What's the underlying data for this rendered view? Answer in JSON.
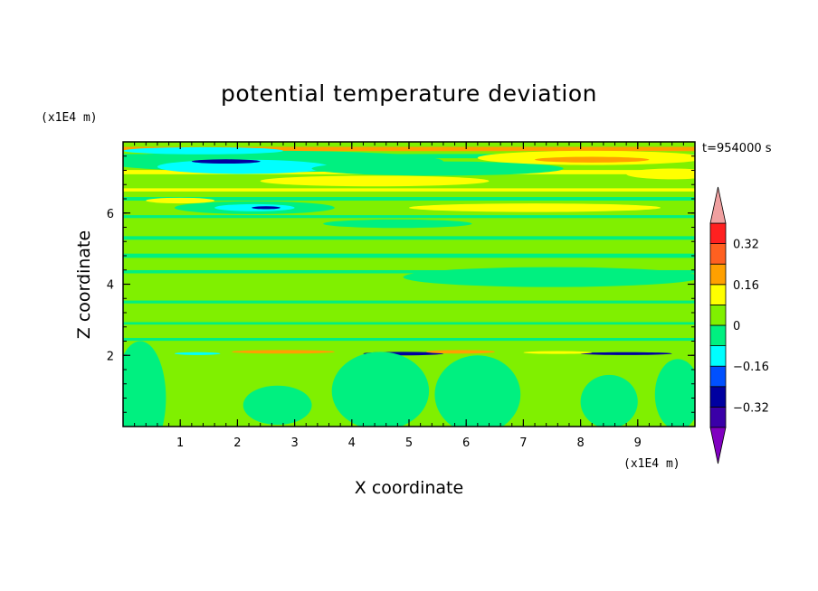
{
  "chart_data": {
    "type": "heatmap",
    "title": "potential temperature deviation",
    "xlabel": "X coordinate",
    "ylabel": "Z coordinate",
    "x_unit": "(x1E4 m)",
    "y_unit": "(x1E4 m)",
    "time_label": "t=954000 s",
    "xlim": [
      0,
      10
    ],
    "ylim": [
      0,
      8
    ],
    "x_ticks": [
      1,
      2,
      3,
      4,
      5,
      6,
      7,
      8,
      9
    ],
    "y_ticks": [
      2,
      4,
      6
    ],
    "x_tick_labels": [
      "1",
      "2",
      "3",
      "4",
      "5",
      "6",
      "7",
      "8",
      "9"
    ],
    "y_tick_labels": [
      "2",
      "4",
      "6"
    ],
    "colorbar": {
      "levels": [
        -0.4,
        -0.32,
        -0.24,
        -0.16,
        -0.08,
        0,
        0.08,
        0.16,
        0.24,
        0.32,
        0.4
      ],
      "tick_values": [
        0.32,
        0.16,
        0,
        -0.16,
        -0.32
      ],
      "tick_labels": [
        "0.32",
        "0.16",
        "0",
        "−0.16",
        "−0.32"
      ],
      "colors": [
        "#8000c0",
        "#3a00a8",
        "#0000a0",
        "#0050ff",
        "#00ffff",
        "#00f080",
        "#80f000",
        "#ffff00",
        "#ffa000",
        "#ff6020",
        "#ff2020",
        "#f0a0a0"
      ],
      "extend": "both"
    },
    "background_color": "#80f000",
    "features": [
      {
        "type": "hband",
        "z": 7.8,
        "dz": 0.12,
        "cls": 0.2
      },
      {
        "type": "hband",
        "z": 7.6,
        "dz": 0.12,
        "cls": -0.05
      },
      {
        "type": "hband",
        "z": 7.15,
        "dz": 0.12,
        "cls": 0.12
      },
      {
        "type": "hband",
        "z": 6.65,
        "dz": 0.09,
        "cls": 0.12
      },
      {
        "type": "hband",
        "z": 6.4,
        "dz": 0.1,
        "cls": -0.05
      },
      {
        "type": "hband",
        "z": 5.9,
        "dz": 0.08,
        "cls": -0.05
      },
      {
        "type": "hband",
        "z": 5.3,
        "dz": 0.1,
        "cls": -0.05
      },
      {
        "type": "hband",
        "z": 4.8,
        "dz": 0.12,
        "cls": -0.05
      },
      {
        "type": "hband",
        "z": 4.35,
        "dz": 0.09,
        "cls": -0.05
      },
      {
        "type": "hband",
        "z": 3.5,
        "dz": 0.08,
        "cls": -0.05
      },
      {
        "type": "hband",
        "z": 2.9,
        "dz": 0.07,
        "cls": -0.05
      },
      {
        "type": "hband",
        "z": 2.45,
        "dz": 0.08,
        "cls": -0.05
      },
      {
        "type": "blob",
        "x": 2.6,
        "z": 7.45,
        "rx": 3.0,
        "rz": 0.3,
        "cls": -0.05
      },
      {
        "type": "blob",
        "x": 2.1,
        "z": 7.3,
        "rx": 1.5,
        "rz": 0.2,
        "cls": -0.14
      },
      {
        "type": "blob",
        "x": 1.4,
        "z": 7.75,
        "rx": 1.4,
        "rz": 0.1,
        "cls": -0.14
      },
      {
        "type": "blob",
        "x": 1.8,
        "z": 7.45,
        "rx": 0.6,
        "rz": 0.06,
        "cls": -0.26
      },
      {
        "type": "blob",
        "x": 5.5,
        "z": 7.25,
        "rx": 2.2,
        "rz": 0.2,
        "cls": -0.05
      },
      {
        "type": "blob",
        "x": 4.4,
        "z": 6.9,
        "rx": 2.0,
        "rz": 0.15,
        "cls": 0.12
      },
      {
        "type": "blob",
        "x": 8.2,
        "z": 7.55,
        "rx": 2.0,
        "rz": 0.2,
        "cls": 0.12
      },
      {
        "type": "blob",
        "x": 8.2,
        "z": 7.5,
        "rx": 1.0,
        "rz": 0.08,
        "cls": 0.2
      },
      {
        "type": "blob",
        "x": 9.6,
        "z": 7.1,
        "rx": 0.8,
        "rz": 0.15,
        "cls": 0.12
      },
      {
        "type": "blob",
        "x": 2.3,
        "z": 6.15,
        "rx": 1.4,
        "rz": 0.18,
        "cls": -0.05
      },
      {
        "type": "blob",
        "x": 2.3,
        "z": 6.15,
        "rx": 0.7,
        "rz": 0.1,
        "cls": -0.14
      },
      {
        "type": "blob",
        "x": 2.5,
        "z": 6.15,
        "rx": 0.25,
        "rz": 0.04,
        "cls": -0.26
      },
      {
        "type": "blob",
        "x": 7.2,
        "z": 6.15,
        "rx": 2.2,
        "rz": 0.12,
        "cls": 0.12
      },
      {
        "type": "blob",
        "x": 1.0,
        "z": 6.35,
        "rx": 0.6,
        "rz": 0.08,
        "cls": 0.12
      },
      {
        "type": "blob",
        "x": 7.5,
        "z": 4.2,
        "rx": 2.6,
        "rz": 0.28,
        "cls": -0.05
      },
      {
        "type": "blob",
        "x": 4.8,
        "z": 5.7,
        "rx": 1.3,
        "rz": 0.12,
        "cls": -0.05
      },
      {
        "type": "blob",
        "x": 2.8,
        "z": 2.1,
        "rx": 0.9,
        "rz": 0.05,
        "cls": 0.2
      },
      {
        "type": "blob",
        "x": 4.9,
        "z": 2.05,
        "rx": 0.7,
        "rz": 0.05,
        "cls": -0.26
      },
      {
        "type": "blob",
        "x": 5.9,
        "z": 2.1,
        "rx": 0.6,
        "rz": 0.05,
        "cls": 0.2
      },
      {
        "type": "blob",
        "x": 8.8,
        "z": 2.05,
        "rx": 0.8,
        "rz": 0.04,
        "cls": -0.26
      },
      {
        "type": "blob",
        "x": 1.3,
        "z": 2.05,
        "rx": 0.4,
        "rz": 0.04,
        "cls": -0.14
      },
      {
        "type": "blob",
        "x": 7.6,
        "z": 2.08,
        "rx": 0.6,
        "rz": 0.04,
        "cls": 0.12
      },
      {
        "type": "blob",
        "x": 0.3,
        "z": 0.8,
        "rx": 0.45,
        "rz": 1.6,
        "cls": -0.05
      },
      {
        "type": "blob",
        "x": 2.7,
        "z": 0.6,
        "rx": 0.6,
        "rz": 0.55,
        "cls": -0.05
      },
      {
        "type": "blob",
        "x": 4.5,
        "z": 1.0,
        "rx": 0.85,
        "rz": 1.1,
        "cls": -0.05
      },
      {
        "type": "blob",
        "x": 6.2,
        "z": 0.9,
        "rx": 0.75,
        "rz": 1.1,
        "cls": -0.05
      },
      {
        "type": "blob",
        "x": 8.5,
        "z": 0.7,
        "rx": 0.5,
        "rz": 0.75,
        "cls": -0.05
      },
      {
        "type": "blob",
        "x": 9.7,
        "z": 0.9,
        "rx": 0.4,
        "rz": 1.0,
        "cls": -0.05
      }
    ]
  }
}
